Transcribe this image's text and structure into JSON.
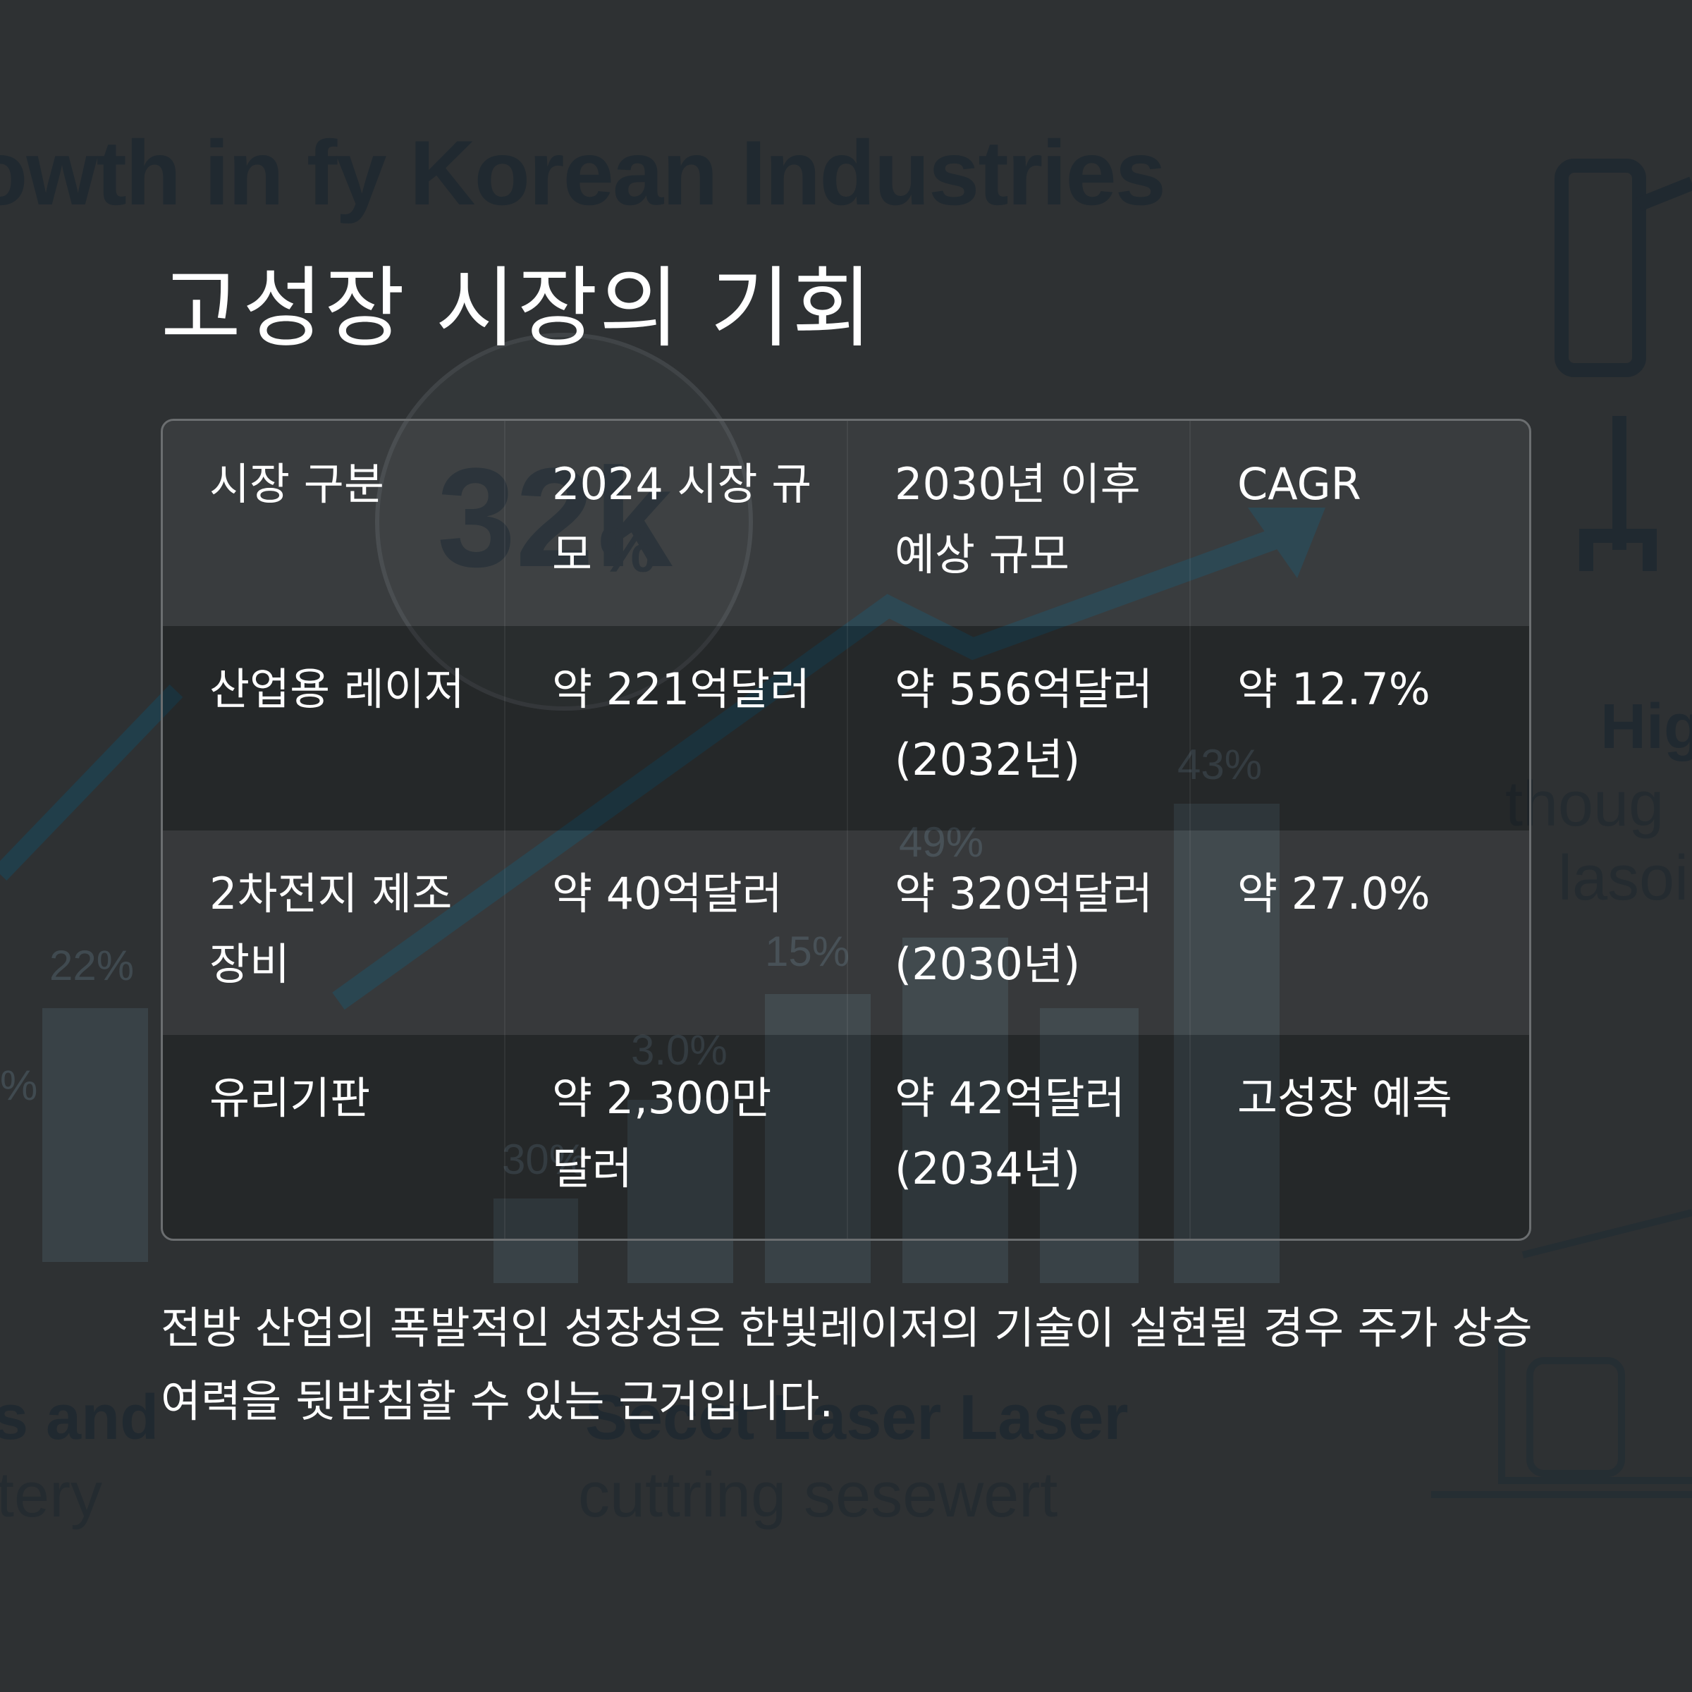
{
  "background": {
    "headline": "owth in fy Korean Industries",
    "center_figure": "32k",
    "center_pct": "%",
    "percent_labels": [
      "22%",
      "15%",
      "3.0%",
      "30%",
      "49%",
      "43%",
      "%"
    ],
    "caption_left_bold": "s and",
    "caption_left_light": "ttery",
    "caption_mid_bold": "Secct Laser Laser",
    "caption_mid_light": "cuttring sesewert",
    "caption_right_bold": "Hig",
    "caption_right_light_1": "thoug",
    "caption_right_light_2": "lasoi"
  },
  "title": "고성장 시장의 기회",
  "table": {
    "headers": [
      "시장 구분",
      "2024 시장 규모",
      "2030년 이후 예상 규모",
      "CAGR"
    ],
    "rows": [
      [
        "산업용 레이저",
        "약 221억달러",
        "약 556억달러 (2032년)",
        "약 12.7%"
      ],
      [
        "2차전지 제조장비",
        "약 40억달러",
        "약 320억달러 (2030년)",
        "약 27.0%"
      ],
      [
        "유리기판",
        "약 2,300만 달러",
        "약 42억달러 (2034년)",
        "고성장 예측"
      ]
    ]
  },
  "summary": "전방 산업의 폭발적인 성장성은 한빛레이저의 기술이 실현될 경우 주가 상승 여력을 뒷받침할 수 있는 근거입니다."
}
